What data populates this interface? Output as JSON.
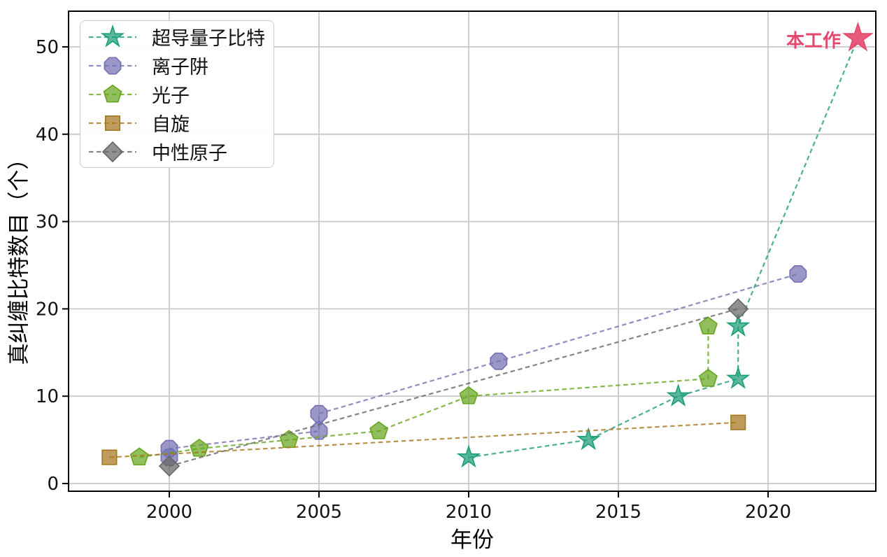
{
  "chart_data": {
    "type": "scatter",
    "title": "",
    "xlabel": "年份",
    "ylabel": "真纠缠比特数目（个）",
    "x_ticks": [
      2000,
      2005,
      2010,
      2015,
      2020
    ],
    "y_ticks": [
      0,
      10,
      20,
      30,
      40,
      50
    ],
    "x_range": [
      1996.6,
      2023.6
    ],
    "y_range": [
      -0.9,
      54.1
    ],
    "grid": "on",
    "grid_color": "#c9c9c9",
    "line_style": "dashed",
    "legend_position": "upper-left",
    "series": [
      {
        "key": "superconducting",
        "name": "超导量子比特",
        "marker": "star",
        "color": "#1b9e77",
        "points": [
          [
            2010,
            3
          ],
          [
            2014,
            5
          ],
          [
            2017,
            10
          ],
          [
            2019,
            12
          ],
          [
            2019,
            18
          ]
        ]
      },
      {
        "key": "ion-trap",
        "name": "离子阱",
        "marker": "octagon",
        "color": "#7570b3",
        "points": [
          [
            2000,
            3
          ],
          [
            2000,
            4
          ],
          [
            2005,
            6
          ],
          [
            2005,
            8
          ],
          [
            2011,
            14
          ],
          [
            2021,
            24
          ]
        ]
      },
      {
        "key": "photon",
        "name": "光子",
        "marker": "pentagon",
        "color": "#66a61e",
        "points": [
          [
            1999,
            3
          ],
          [
            2001,
            4
          ],
          [
            2004,
            5
          ],
          [
            2007,
            6
          ],
          [
            2010,
            10
          ],
          [
            2018,
            12
          ],
          [
            2018,
            18
          ]
        ]
      },
      {
        "key": "spin",
        "name": "自旋",
        "marker": "square",
        "color": "#a6761d",
        "points": [
          [
            1998,
            3
          ],
          [
            2019,
            7
          ]
        ]
      },
      {
        "key": "neutral-atom",
        "name": "中性原子",
        "marker": "diamond",
        "color": "#666666",
        "points": [
          [
            2000,
            2
          ],
          [
            2019,
            20
          ]
        ]
      }
    ],
    "this_work": {
      "label": "本工作",
      "marker": "star",
      "color": "#e4486d",
      "point": [
        2023,
        51
      ],
      "extends_series": "superconducting"
    }
  }
}
